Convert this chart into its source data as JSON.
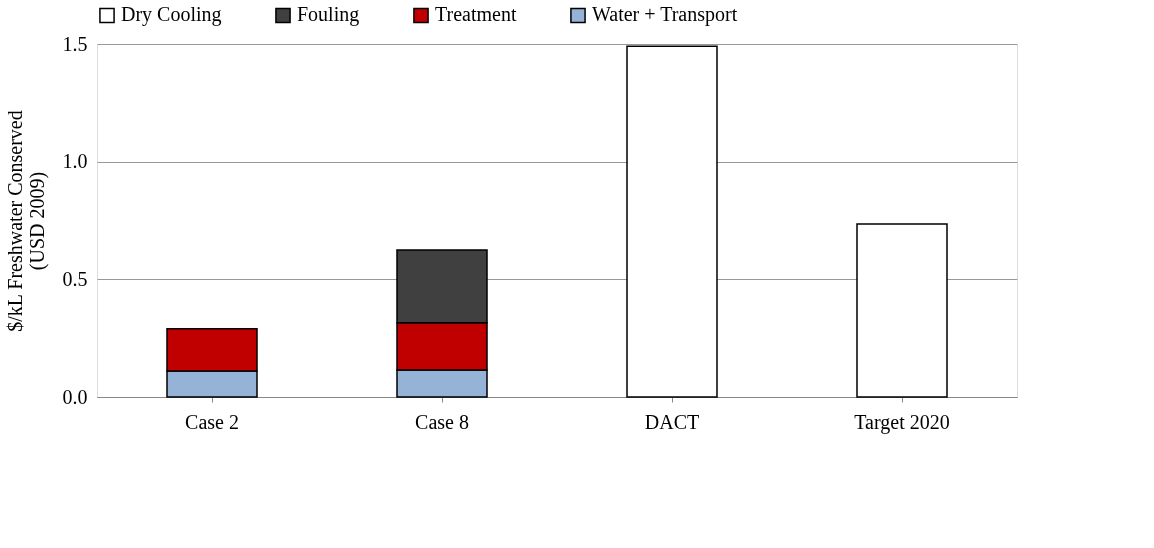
{
  "chart_data": {
    "type": "bar",
    "stacked": true,
    "ylabel": "$/kL Freshwater Conserved\n(USD 2009)",
    "categories": [
      "Case 2",
      "Case 8",
      "DACT",
      "Target 2020"
    ],
    "series": [
      {
        "name": "Water + Transport",
        "color": "#95b3d7",
        "values": [
          0.11,
          0.115,
          null,
          null
        ]
      },
      {
        "name": "Treatment",
        "color": "#c00000",
        "values": [
          0.18,
          0.2,
          null,
          null
        ]
      },
      {
        "name": "Fouling",
        "color": "#404040",
        "values": [
          null,
          0.31,
          null,
          null
        ]
      },
      {
        "name": "Dry Cooling",
        "color": "#ffffff",
        "values": [
          null,
          null,
          1.49,
          0.735
        ]
      }
    ],
    "ylim": [
      0,
      1.5
    ],
    "yticks": [
      {
        "value": 0,
        "label": "0.0"
      },
      {
        "value": 0.5,
        "label": "0.5"
      },
      {
        "value": 1,
        "label": "1.0"
      },
      {
        "value": 1.5,
        "label": "1.5"
      }
    ],
    "grid": "y",
    "legend": "top"
  }
}
